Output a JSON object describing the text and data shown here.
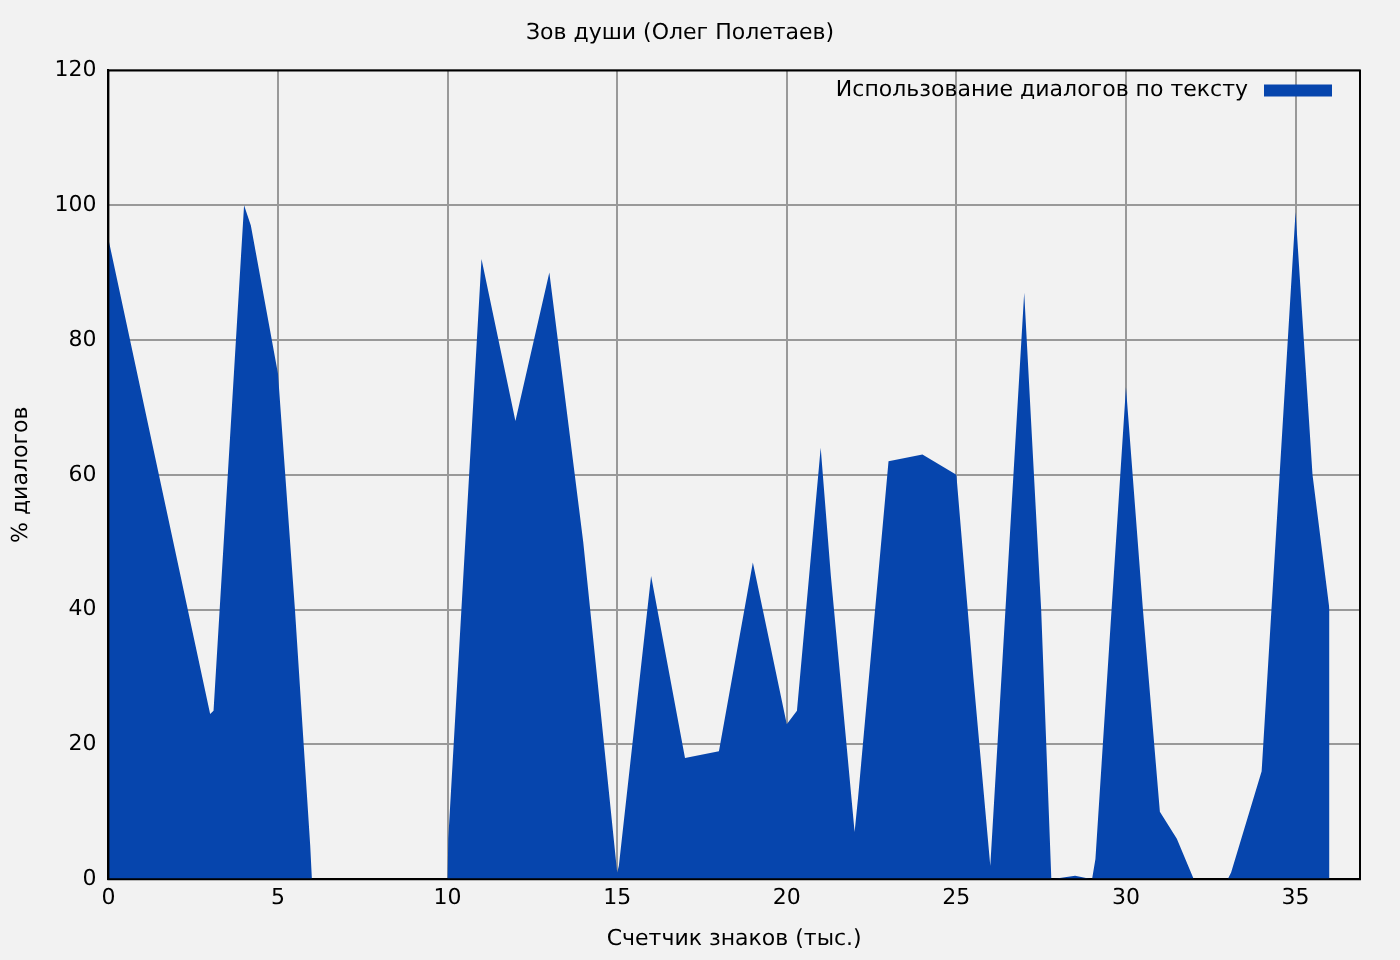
{
  "chart_data": {
    "type": "area",
    "title": "Зов души (Олег Полетаев)",
    "xlabel": "Счетчик знаков (тыс.)",
    "ylabel": "% диалогов",
    "xlim": [
      0,
      36.9
    ],
    "xticks": [
      0,
      5,
      10,
      15,
      20,
      25,
      30,
      35
    ],
    "ylim": [
      0,
      120
    ],
    "yticks": [
      0,
      20,
      40,
      60,
      80,
      100,
      120
    ],
    "grid": true,
    "legend": "top right",
    "series": [
      {
        "name": "Использование диалогов по тексту",
        "color": "#0645ad",
        "x": [
          0,
          3,
          3.1,
          4,
          4.2,
          5,
          5.5,
          5.95,
          6,
          10,
          10.02,
          11,
          12,
          13,
          14,
          15,
          15.05,
          16,
          17,
          18,
          19,
          20,
          20.3,
          21,
          21.3,
          22,
          22.1,
          23,
          24,
          25,
          25.5,
          26,
          27,
          27.5,
          27.8,
          28.5,
          29,
          29.1,
          30,
          30.5,
          31,
          31.5,
          32,
          33,
          33.1,
          34,
          35,
          35.5,
          36
        ],
        "values": [
          95,
          24.5,
          25,
          100,
          97,
          75,
          40,
          5,
          0,
          0,
          6,
          92,
          68,
          90,
          50,
          1,
          2,
          45,
          18,
          19,
          47,
          23,
          25,
          64,
          45,
          7,
          12,
          62,
          63,
          60,
          30,
          2,
          87,
          40,
          0,
          0.5,
          0,
          3,
          73,
          40,
          10,
          6,
          0,
          0,
          1,
          16,
          99,
          60,
          40
        ]
      }
    ]
  }
}
